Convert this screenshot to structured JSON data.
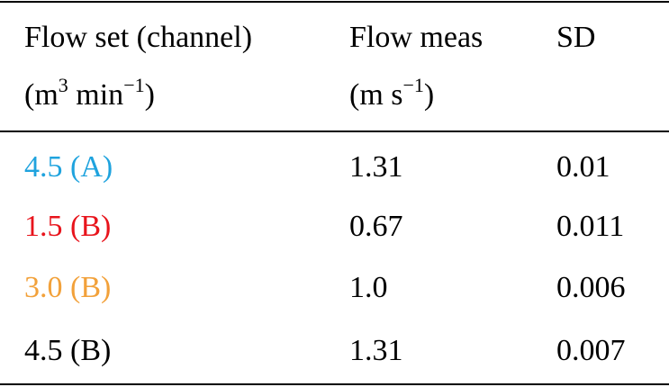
{
  "table": {
    "header": [
      "Flow set (channel)",
      "Flow meas",
      "SD"
    ],
    "units": [
      [
        "(m",
        "3",
        " min",
        "−1",
        ")"
      ],
      [
        "(m s",
        "−1",
        ")"
      ]
    ],
    "rows": [
      {
        "cells": [
          "4.5 (A)",
          "1.31",
          "0.01"
        ],
        "color": "#1fa3de"
      },
      {
        "cells": [
          "1.5 (B)",
          "0.67",
          "0.011"
        ],
        "color": "#e8141c"
      },
      {
        "cells": [
          "3.0 (B)",
          "1.0",
          "0.006"
        ],
        "color": "#f2a13a"
      },
      {
        "cells": [
          "4.5 (B)",
          "1.31",
          "0.007"
        ],
        "color": "#000000"
      }
    ]
  }
}
